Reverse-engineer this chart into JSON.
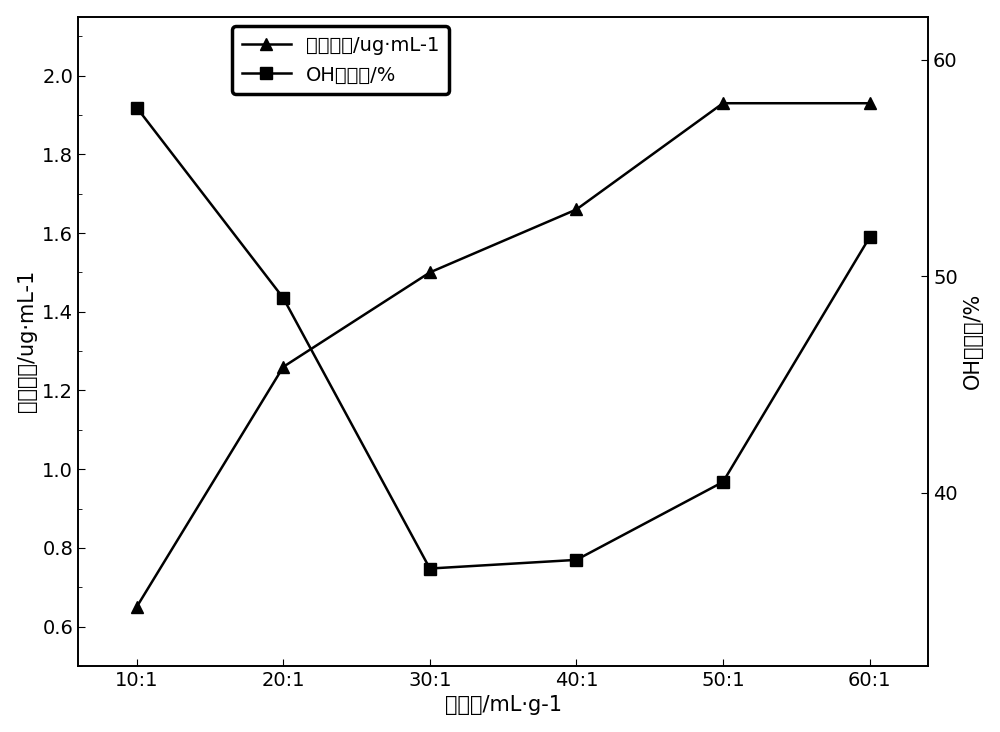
{
  "x_labels": [
    "10:1",
    "20:1",
    "30:1",
    "40:1",
    "50:1",
    "60:1"
  ],
  "x_positions": [
    0,
    1,
    2,
    3,
    4,
    5
  ],
  "phenol_values": [
    0.65,
    1.26,
    1.5,
    1.66,
    1.93,
    1.93
  ],
  "oh_values_raw": [
    57.8,
    49.0,
    36.5,
    36.9,
    40.5,
    51.8
  ],
  "left_ylim": [
    0.5,
    2.15
  ],
  "left_yticks": [
    0.6,
    0.8,
    1.0,
    1.2,
    1.4,
    1.6,
    1.8,
    2.0
  ],
  "right_ylim": [
    32,
    62
  ],
  "right_yticks": [
    40,
    50,
    60
  ],
  "xlabel": "液固比/mL·g-1",
  "ylabel_left": "酟类浓度/ug·mL-1",
  "ylabel_right": "OH清除率/%",
  "legend1": "酟类浓度/ug·mL-1",
  "legend2": "OH清除率/%",
  "line_color": "#000000",
  "marker_triangle": "^",
  "marker_square": "s",
  "marker_size": 9,
  "line_width": 1.8,
  "fig_width": 10.0,
  "fig_height": 7.32,
  "background_color": "#ffffff",
  "legend_font_size": 14,
  "tick_font_size": 14,
  "label_font_size": 15
}
